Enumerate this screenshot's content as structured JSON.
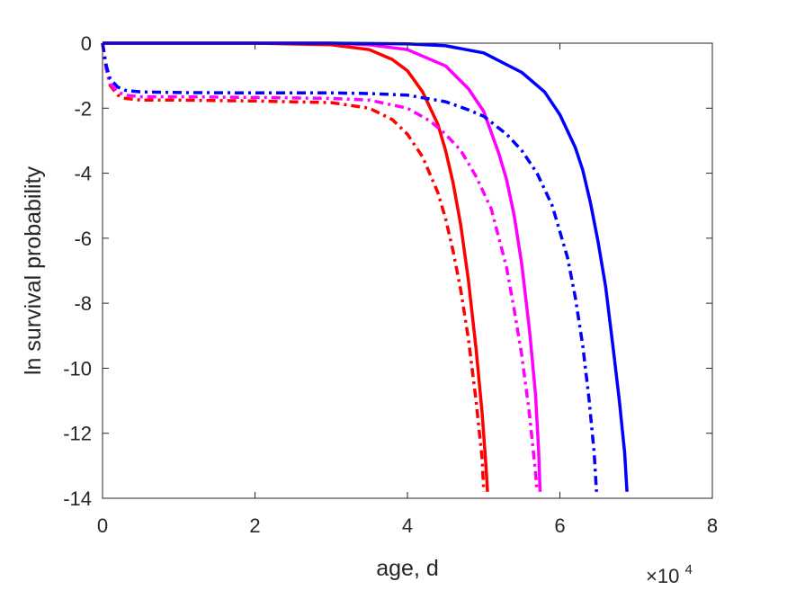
{
  "chart_data": {
    "type": "line",
    "xlabel": "age, d",
    "ylabel": "ln survival probability",
    "x_exponent_label": {
      "base": "×10",
      "exponent": "4"
    },
    "xlim": [
      0,
      80000
    ],
    "ylim": [
      -14,
      0
    ],
    "xticks": [
      0,
      20000,
      40000,
      60000,
      80000
    ],
    "xtick_labels": [
      "0",
      "2",
      "4",
      "6",
      "8"
    ],
    "yticks": [
      0,
      -2,
      -4,
      -6,
      -8,
      -10,
      -12,
      -14
    ],
    "ytick_labels": [
      "0",
      "-2",
      "-4",
      "-6",
      "-8",
      "-10",
      "-12",
      "-14"
    ],
    "grid": false,
    "series": [
      {
        "color": "#ff0000",
        "style": "solid",
        "x": [
          0,
          5000,
          10000,
          20000,
          30000,
          35000,
          38000,
          40000,
          42000,
          44000,
          45000,
          46000,
          47000,
          48000,
          49000,
          49800,
          50300,
          50500
        ],
        "y": [
          0,
          0,
          0,
          0,
          -0.05,
          -0.2,
          -0.5,
          -0.85,
          -1.5,
          -2.5,
          -3.3,
          -4.3,
          -5.6,
          -7.3,
          -9.4,
          -11.4,
          -13.0,
          -13.8
        ]
      },
      {
        "color": "#ff0000",
        "style": "dashdot",
        "x": [
          0,
          500,
          1000,
          2000,
          3000,
          5000,
          10000,
          20000,
          30000,
          35000,
          38000,
          40000,
          42000,
          44000,
          45000,
          46000,
          47000,
          48000,
          49000,
          49800,
          50000
        ],
        "y": [
          0,
          -0.8,
          -1.3,
          -1.6,
          -1.7,
          -1.75,
          -1.75,
          -1.78,
          -1.83,
          -2.0,
          -2.35,
          -2.8,
          -3.5,
          -4.6,
          -5.4,
          -6.4,
          -7.6,
          -9.1,
          -11.0,
          -12.8,
          -13.8
        ]
      },
      {
        "color": "#ff00ff",
        "style": "solid",
        "x": [
          0,
          5000,
          10000,
          20000,
          30000,
          35000,
          40000,
          45000,
          48000,
          50000,
          52000,
          53000,
          54000,
          55000,
          56000,
          56800,
          57200,
          57400
        ],
        "y": [
          0,
          0,
          0,
          0,
          0,
          -0.05,
          -0.2,
          -0.7,
          -1.4,
          -2.1,
          -3.4,
          -4.2,
          -5.3,
          -6.8,
          -8.8,
          -10.8,
          -12.5,
          -13.8
        ]
      },
      {
        "color": "#ff00ff",
        "style": "dashdot",
        "x": [
          0,
          500,
          1000,
          2000,
          3000,
          5000,
          10000,
          20000,
          30000,
          35000,
          40000,
          43000,
          45000,
          47000,
          49000,
          51000,
          53000,
          54000,
          55000,
          56000,
          56800,
          57000
        ],
        "y": [
          0,
          -0.8,
          -1.25,
          -1.5,
          -1.6,
          -1.65,
          -1.65,
          -1.67,
          -1.7,
          -1.75,
          -2.0,
          -2.4,
          -2.8,
          -3.3,
          -4.1,
          -5.1,
          -6.9,
          -8.2,
          -9.6,
          -11.4,
          -13.2,
          -13.8
        ]
      },
      {
        "color": "#0000ff",
        "style": "solid",
        "x": [
          0,
          10000,
          20000,
          30000,
          40000,
          45000,
          50000,
          55000,
          58000,
          60000,
          62000,
          63000,
          64000,
          65000,
          66000,
          67000,
          67800,
          68500,
          68800
        ],
        "y": [
          0,
          0,
          0,
          0,
          -0.02,
          -0.08,
          -0.3,
          -0.9,
          -1.5,
          -2.2,
          -3.2,
          -3.9,
          -4.9,
          -6.1,
          -7.5,
          -9.4,
          -11.0,
          -12.6,
          -13.8
        ]
      },
      {
        "color": "#0000ff",
        "style": "dashdot",
        "x": [
          0,
          500,
          1000,
          2000,
          3000,
          5000,
          10000,
          20000,
          30000,
          35000,
          40000,
          45000,
          48000,
          50000,
          53000,
          55000,
          57000,
          59000,
          61000,
          62000,
          63000,
          63800,
          64500,
          64800
        ],
        "y": [
          0,
          -0.7,
          -1.1,
          -1.35,
          -1.45,
          -1.5,
          -1.52,
          -1.53,
          -1.53,
          -1.55,
          -1.6,
          -1.8,
          -2.05,
          -2.25,
          -2.8,
          -3.3,
          -4.0,
          -5.0,
          -6.6,
          -7.8,
          -9.3,
          -10.9,
          -12.6,
          -13.8
        ]
      }
    ]
  }
}
